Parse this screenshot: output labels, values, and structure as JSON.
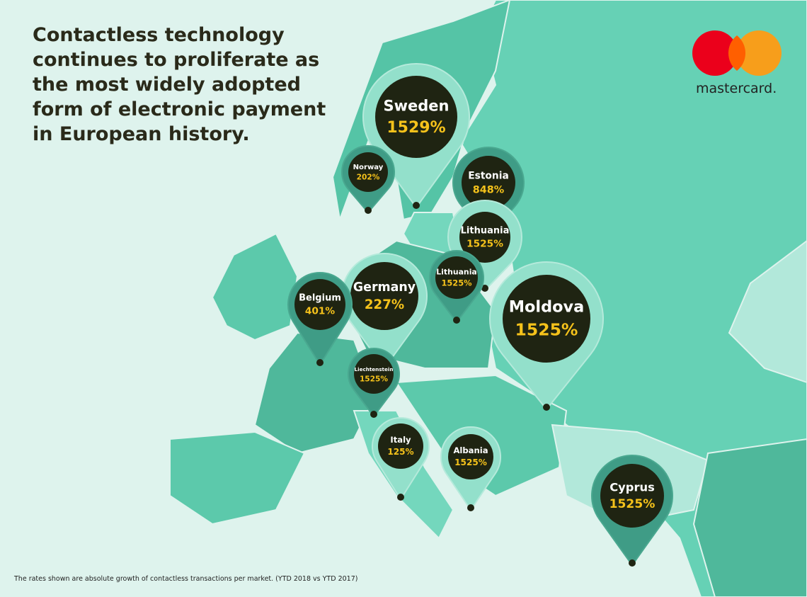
{
  "header": {
    "title": "Contactless technology continues to proliferate as the most widely adopted form of electronic payment in European history."
  },
  "logo": {
    "text": "mastercard."
  },
  "pins": [
    {
      "country": "Sweden",
      "value": "1529%"
    },
    {
      "country": "Norway",
      "value": "202%"
    },
    {
      "country": "Estonia",
      "value": "848%"
    },
    {
      "country": "Lithuania",
      "value": "1525%"
    },
    {
      "country": "Lithuania",
      "value": "1525%"
    },
    {
      "country": "Germany",
      "value": "227%"
    },
    {
      "country": "Belgium",
      "value": "401%"
    },
    {
      "country": "Moldova",
      "value": "1525%"
    },
    {
      "country": "Liechtenstein",
      "value": "1525%"
    },
    {
      "country": "Italy",
      "value": "125%"
    },
    {
      "country": "Albania",
      "value": "1525%"
    },
    {
      "country": "Cyprus",
      "value": "1525%"
    }
  ],
  "footnote": "The rates shown are absolute growth of contactless transactions per market. (YTD 2018 vs YTD 2017)"
}
